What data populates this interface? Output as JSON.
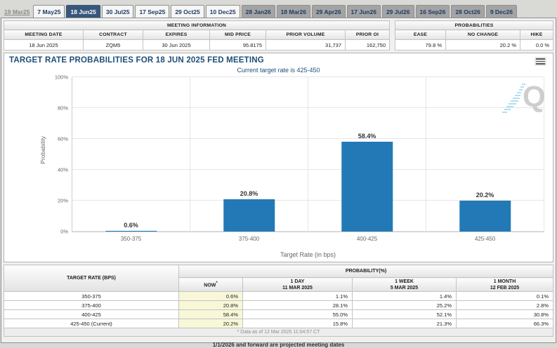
{
  "tabbar": {
    "tabs": [
      {
        "label": "19 Mar25",
        "state": "past"
      },
      {
        "label": "7 May25",
        "state": "normal"
      },
      {
        "label": "18 Jun25",
        "state": "active"
      },
      {
        "label": "30 Jul25",
        "state": "normal"
      },
      {
        "label": "17 Sep25",
        "state": "normal"
      },
      {
        "label": "29 Oct25",
        "state": "normal"
      },
      {
        "label": "10 Dec25",
        "state": "normal"
      },
      {
        "label": "28 Jan26",
        "state": "projected"
      },
      {
        "label": "18 Mar26",
        "state": "projected"
      },
      {
        "label": "29 Apr26",
        "state": "projected"
      },
      {
        "label": "17 Jun26",
        "state": "projected"
      },
      {
        "label": "29 Jul26",
        "state": "projected"
      },
      {
        "label": "16 Sep26",
        "state": "projected"
      },
      {
        "label": "28 Oct26",
        "state": "projected"
      },
      {
        "label": "9 Dec26",
        "state": "projected"
      }
    ]
  },
  "meeting_info": {
    "title": "MEETING INFORMATION",
    "headers": [
      "MEETING DATE",
      "CONTRACT",
      "EXPIRES",
      "MID PRICE",
      "PRIOR VOLUME",
      "PRIOR OI"
    ],
    "values": [
      "18 Jun 2025",
      "ZQM5",
      "30 Jun 2025",
      "95.8175",
      "31,737",
      "162,750"
    ]
  },
  "probabilities_summary": {
    "title": "PROBABILITIES",
    "headers": [
      "EASE",
      "NO CHANGE",
      "HIKE"
    ],
    "values": [
      "79.8 %",
      "20.2 %",
      "0.0 %"
    ]
  },
  "chart_data": {
    "type": "bar",
    "title": "TARGET RATE PROBABILITIES FOR 18 JUN 2025 FED MEETING",
    "subtitle": "Current target rate is 425-450",
    "categories": [
      "350-375",
      "375-400",
      "400-425",
      "425-450"
    ],
    "values": [
      0.6,
      20.8,
      58.4,
      20.2
    ],
    "data_labels": [
      "0.6%",
      "20.8%",
      "58.4%",
      "20.2%"
    ],
    "xlabel": "Target Rate (in bps)",
    "ylabel": "Probability",
    "ylim": [
      0,
      100
    ],
    "yticks": [
      "0%",
      "20%",
      "40%",
      "60%",
      "80%",
      "100%"
    ],
    "grid": true,
    "legend": "none",
    "bar_color": "#2279b5",
    "watermark_letter": "Q"
  },
  "prob_table": {
    "col1_header": "TARGET RATE (BPS)",
    "group_header": "PROBABILITY(%)",
    "sub_headers": {
      "now": "NOW",
      "now_star": "*",
      "d1_line1": "1 DAY",
      "d1_line2": "11 MAR 2025",
      "w1_line1": "1 WEEK",
      "w1_line2": "5 MAR 2025",
      "m1_line1": "1 MONTH",
      "m1_line2": "12 FEB 2025"
    },
    "rows": [
      {
        "rate": "350-375",
        "now": "0.6%",
        "d1": "1.1%",
        "w1": "1.4%",
        "m1": "0.1%"
      },
      {
        "rate": "375-400",
        "now": "20.8%",
        "d1": "28.1%",
        "w1": "25.2%",
        "m1": "2.8%"
      },
      {
        "rate": "400-425",
        "now": "58.4%",
        "d1": "55.0%",
        "w1": "52.1%",
        "m1": "30.8%"
      },
      {
        "rate": "425-450 (Current)",
        "now": "20.2%",
        "d1": "15.8%",
        "w1": "21.3%",
        "m1": "66.3%"
      }
    ],
    "footnote": "* Data as of 12 Mar 2025 11:04:57 CT"
  },
  "footer_note": "1/1/2026 and forward are projected meeting dates"
}
